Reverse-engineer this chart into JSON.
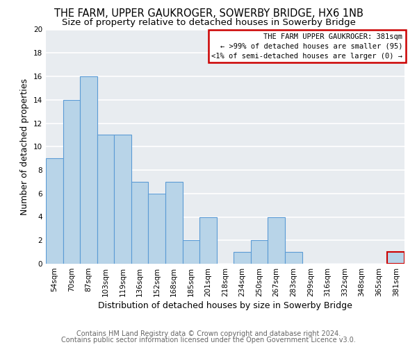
{
  "title": "THE FARM, UPPER GAUKROGER, SOWERBY BRIDGE, HX6 1NB",
  "subtitle": "Size of property relative to detached houses in Sowerby Bridge",
  "xlabel": "Distribution of detached houses by size in Sowerby Bridge",
  "ylabel": "Number of detached properties",
  "bin_labels": [
    "54sqm",
    "70sqm",
    "87sqm",
    "103sqm",
    "119sqm",
    "136sqm",
    "152sqm",
    "168sqm",
    "185sqm",
    "201sqm",
    "218sqm",
    "234sqm",
    "250sqm",
    "267sqm",
    "283sqm",
    "299sqm",
    "316sqm",
    "332sqm",
    "348sqm",
    "365sqm",
    "381sqm"
  ],
  "values": [
    9,
    14,
    16,
    11,
    11,
    7,
    6,
    7,
    2,
    4,
    0,
    1,
    2,
    4,
    1,
    0,
    0,
    0,
    0,
    0,
    1
  ],
  "bar_color": "#b8d4e8",
  "bar_edge_color": "#5b9bd5",
  "highlight_bar_index": 20,
  "highlight_bar_edge_color": "#cc0000",
  "ylim": [
    0,
    20
  ],
  "yticks": [
    0,
    2,
    4,
    6,
    8,
    10,
    12,
    14,
    16,
    18,
    20
  ],
  "legend_title": "THE FARM UPPER GAUKROGER: 381sqm",
  "legend_line1": "← >99% of detached houses are smaller (95)",
  "legend_line2": "<1% of semi-detached houses are larger (0) →",
  "legend_box_edge_color": "#cc0000",
  "footer_line1": "Contains HM Land Registry data © Crown copyright and database right 2024.",
  "footer_line2": "Contains public sector information licensed under the Open Government Licence v3.0.",
  "background_color": "#ffffff",
  "plot_bg_color": "#e8ecf0",
  "grid_color": "#ffffff",
  "title_fontsize": 10.5,
  "subtitle_fontsize": 9.5,
  "axis_label_fontsize": 9,
  "tick_fontsize": 7.5,
  "footer_fontsize": 7,
  "legend_fontsize": 7.5
}
